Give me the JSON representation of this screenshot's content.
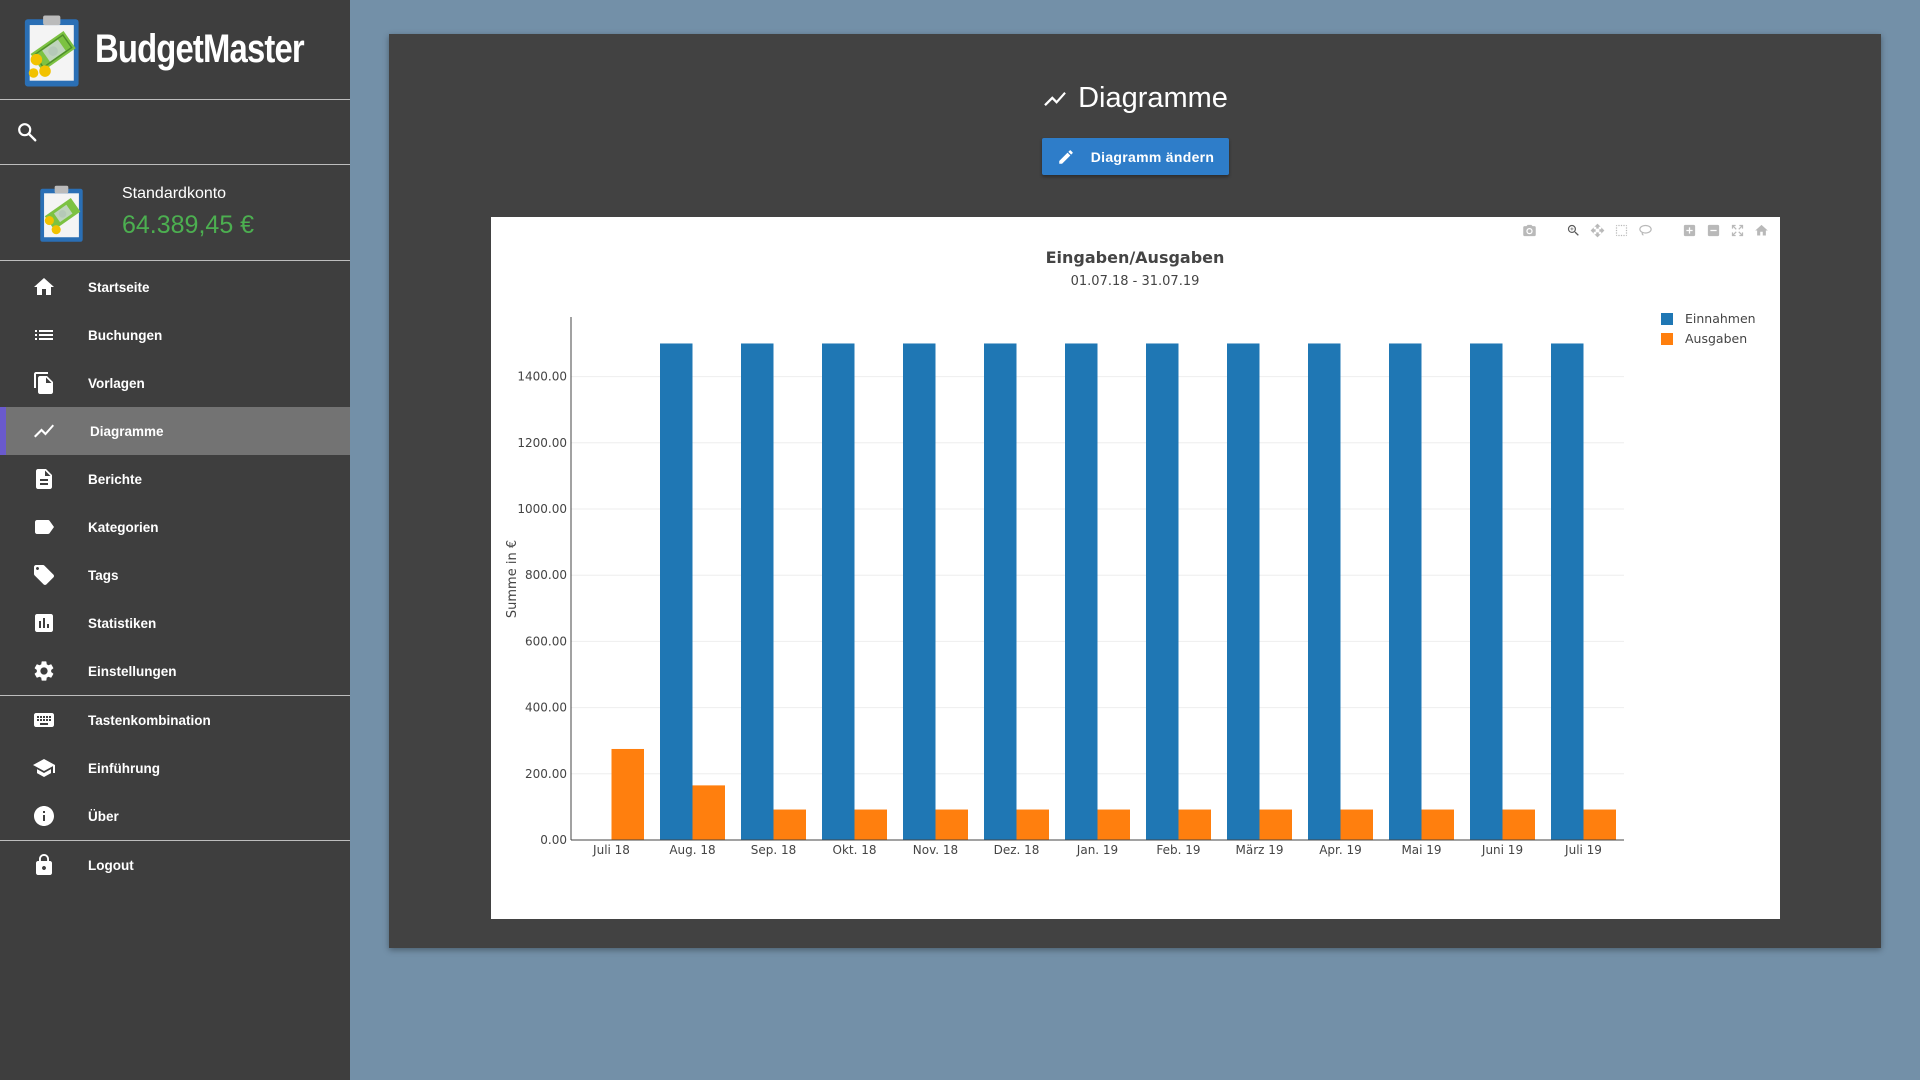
{
  "app": {
    "name": "BudgetMaster"
  },
  "account": {
    "name": "Standardkonto",
    "balance": "64.389,45 €"
  },
  "nav": {
    "items": [
      {
        "label": "Startseite",
        "icon": "home-icon"
      },
      {
        "label": "Buchungen",
        "icon": "list-icon"
      },
      {
        "label": "Vorlagen",
        "icon": "copy-icon"
      },
      {
        "label": "Diagramme",
        "icon": "chart-line-icon",
        "active": true
      },
      {
        "label": "Berichte",
        "icon": "document-icon"
      },
      {
        "label": "Kategorien",
        "icon": "label-icon"
      },
      {
        "label": "Tags",
        "icon": "tag-icon"
      },
      {
        "label": "Statistiken",
        "icon": "stats-icon"
      },
      {
        "label": "Einstellungen",
        "icon": "gear-icon"
      }
    ],
    "help_items": [
      {
        "label": "Tastenkombination",
        "icon": "keyboard-icon"
      },
      {
        "label": "Einführung",
        "icon": "school-icon"
      },
      {
        "label": "Über",
        "icon": "info-icon"
      }
    ],
    "logout_label": "Logout"
  },
  "page": {
    "title": "Diagramme",
    "edit_button": "Diagramm ändern"
  },
  "colors": {
    "accent": "#2e7dc9",
    "income": "#1f77b4",
    "expenses": "#ff7f0e",
    "balance": "#4caf50",
    "active_marker": "#6a5acd"
  },
  "chart_data": {
    "type": "bar",
    "title": "Eingaben/Ausgaben",
    "subtitle": "01.07.18 - 31.07.19",
    "xlabel": "",
    "ylabel": "Summe in €",
    "ylim": [
      0,
      1580
    ],
    "yticks": [
      "0.00",
      "200.00",
      "400.00",
      "600.00",
      "800.00",
      "1000.00",
      "1200.00",
      "1400.00"
    ],
    "legend_position": "top-right",
    "categories": [
      "Juli 18",
      "Aug. 18",
      "Sep. 18",
      "Okt. 18",
      "Nov. 18",
      "Dez. 18",
      "Jan. 19",
      "Feb. 19",
      "März 19",
      "Apr. 19",
      "Mai 19",
      "Juni 19",
      "Juli 19"
    ],
    "series": [
      {
        "name": "Einnahmen",
        "color": "#1f77b4",
        "values": [
          0,
          1500,
          1500,
          1500,
          1500,
          1500,
          1500,
          1500,
          1500,
          1500,
          1500,
          1500,
          1500
        ]
      },
      {
        "name": "Ausgaben",
        "color": "#ff7f0e",
        "values": [
          275,
          165,
          92,
          92,
          92,
          92,
          92,
          92,
          92,
          92,
          92,
          92,
          92
        ]
      }
    ]
  }
}
